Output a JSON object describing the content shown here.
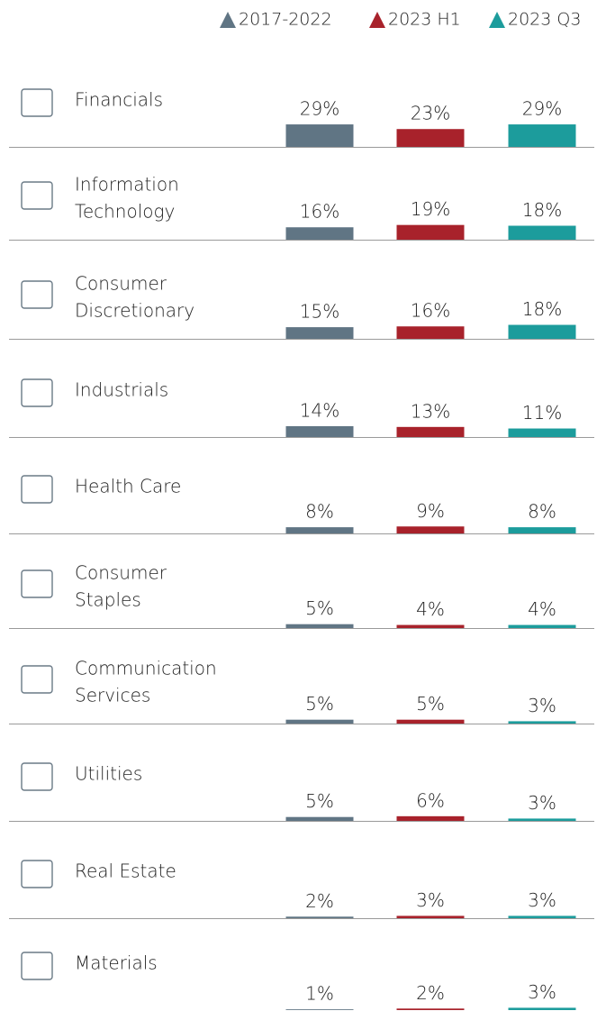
{
  "chart_data": {
    "type": "bar",
    "categories": [
      [
        "Financials"
      ],
      [
        "Information",
        "Technology"
      ],
      [
        "Consumer",
        "Discretionary"
      ],
      [
        "Industrials"
      ],
      [
        "Health Care"
      ],
      [
        "Consumer",
        "Staples"
      ],
      [
        "Communication",
        "Services"
      ],
      [
        "Utilities"
      ],
      [
        "Real Estate"
      ],
      [
        "Materials"
      ]
    ],
    "series": [
      {
        "name": "2017-2022",
        "color": "#607584",
        "values": [
          29,
          16,
          15,
          14,
          8,
          5,
          5,
          5,
          2,
          1
        ],
        "value_labels": [
          "29%",
          "16%",
          "15%",
          "14%",
          "8%",
          "5%",
          "5%",
          "5%",
          "2%",
          "1%"
        ]
      },
      {
        "name": "2023 H1",
        "color": "#a8222b",
        "values": [
          23,
          19,
          16,
          13,
          9,
          4,
          5,
          6,
          3,
          2
        ],
        "value_labels": [
          "23%",
          "19%",
          "16%",
          "13%",
          "9%",
          "4%",
          "5%",
          "6%",
          "3%",
          "2%"
        ]
      },
      {
        "name": "2023 Q3",
        "color": "#1c9c9c",
        "values": [
          29,
          18,
          18,
          11,
          8,
          4,
          3,
          3,
          3,
          3
        ],
        "value_labels": [
          "29%",
          "18%",
          "18%",
          "11%",
          "8%",
          "4%",
          "3%",
          "3%",
          "3%",
          "3%"
        ]
      }
    ]
  }
}
